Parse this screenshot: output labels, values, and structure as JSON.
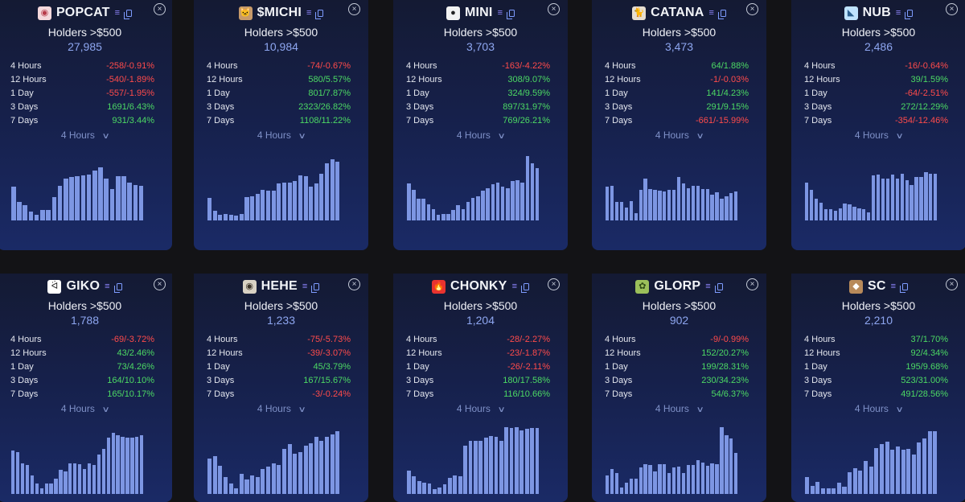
{
  "colors": {
    "up": "#4cd964",
    "down": "#ff4b4b",
    "bar": "#7d96e3",
    "accent": "#8ea6f0"
  },
  "holders_label": "Holders >$500",
  "period_label": "4 Hours",
  "cards": [
    {
      "ticker": "POPCAT",
      "logo": "◉",
      "logo_bg": "#f4d8dc",
      "logo_fg": "#b73b4a",
      "holders": "27,985",
      "stats": [
        {
          "label": "4 Hours",
          "value": "-258/-0.91%",
          "dir": "down"
        },
        {
          "label": "12 Hours",
          "value": "-540/-1.89%",
          "dir": "down"
        },
        {
          "label": "1 Day",
          "value": "-557/-1.95%",
          "dir": "down"
        },
        {
          "label": "3 Days",
          "value": "1691/6.43%",
          "dir": "up"
        },
        {
          "label": "7 Days",
          "value": "931/3.44%",
          "dir": "up"
        }
      ],
      "bars": [
        0.45,
        0.24,
        0.2,
        0.12,
        0.07,
        0.14,
        0.14,
        0.31,
        0.46,
        0.55,
        0.57,
        0.59,
        0.6,
        0.61,
        0.66,
        0.7,
        0.55,
        0.42,
        0.59,
        0.59,
        0.5,
        0.47,
        0.46
      ]
    },
    {
      "ticker": "$MICHI",
      "logo": "🐱",
      "logo_bg": "#c79a6a",
      "logo_fg": "#3a2a1a",
      "holders": "10,984",
      "stats": [
        {
          "label": "4 Hours",
          "value": "-74/-0.67%",
          "dir": "down"
        },
        {
          "label": "12 Hours",
          "value": "580/5.57%",
          "dir": "up"
        },
        {
          "label": "1 Day",
          "value": "801/7.87%",
          "dir": "up"
        },
        {
          "label": "3 Days",
          "value": "2323/26.82%",
          "dir": "up"
        },
        {
          "label": "7 Days",
          "value": "1108/11.22%",
          "dir": "up"
        }
      ],
      "bars": [
        0.3,
        0.13,
        0.07,
        0.09,
        0.08,
        0.06,
        0.09,
        0.31,
        0.32,
        0.35,
        0.4,
        0.39,
        0.39,
        0.49,
        0.5,
        0.5,
        0.52,
        0.6,
        0.59,
        0.45,
        0.49,
        0.62,
        0.76,
        0.81,
        0.78
      ]
    },
    {
      "ticker": "MINI",
      "logo": "●",
      "logo_bg": "#f2f2f2",
      "logo_fg": "#222222",
      "holders": "3,703",
      "stats": [
        {
          "label": "4 Hours",
          "value": "-163/-4.22%",
          "dir": "down"
        },
        {
          "label": "12 Hours",
          "value": "308/9.07%",
          "dir": "up"
        },
        {
          "label": "1 Day",
          "value": "324/9.59%",
          "dir": "up"
        },
        {
          "label": "3 Days",
          "value": "897/31.97%",
          "dir": "up"
        },
        {
          "label": "7 Days",
          "value": "769/26.21%",
          "dir": "up"
        }
      ],
      "bars": [
        0.49,
        0.41,
        0.29,
        0.29,
        0.21,
        0.15,
        0.08,
        0.09,
        0.09,
        0.14,
        0.2,
        0.15,
        0.24,
        0.3,
        0.32,
        0.39,
        0.43,
        0.48,
        0.5,
        0.45,
        0.43,
        0.52,
        0.53,
        0.5,
        0.85,
        0.76,
        0.69
      ]
    },
    {
      "ticker": "CATANA",
      "logo": "🐈",
      "logo_bg": "#e6ddd0",
      "logo_fg": "#4a3b2a",
      "holders": "3,473",
      "stats": [
        {
          "label": "4 Hours",
          "value": "64/1.88%",
          "dir": "up"
        },
        {
          "label": "12 Hours",
          "value": "-1/-0.03%",
          "dir": "down"
        },
        {
          "label": "1 Day",
          "value": "141/4.23%",
          "dir": "up"
        },
        {
          "label": "3 Days",
          "value": "291/9.15%",
          "dir": "up"
        },
        {
          "label": "7 Days",
          "value": "-661/-15.99%",
          "dir": "down"
        }
      ],
      "bars": [
        0.45,
        0.46,
        0.24,
        0.24,
        0.17,
        0.26,
        0.1,
        0.4,
        0.55,
        0.42,
        0.41,
        0.39,
        0.38,
        0.4,
        0.41,
        0.58,
        0.49,
        0.43,
        0.46,
        0.46,
        0.42,
        0.42,
        0.34,
        0.37,
        0.29,
        0.32,
        0.36,
        0.38
      ]
    },
    {
      "ticker": "NUB",
      "logo": "◣",
      "logo_bg": "#bfe3ff",
      "logo_fg": "#2b5f8f",
      "holders": "2,486",
      "stats": [
        {
          "label": "4 Hours",
          "value": "-16/-0.64%",
          "dir": "down"
        },
        {
          "label": "12 Hours",
          "value": "39/1.59%",
          "dir": "up"
        },
        {
          "label": "1 Day",
          "value": "-64/-2.51%",
          "dir": "down"
        },
        {
          "label": "3 Days",
          "value": "272/12.29%",
          "dir": "up"
        },
        {
          "label": "7 Days",
          "value": "-354/-12.46%",
          "dir": "down"
        }
      ],
      "bars": [
        0.5,
        0.4,
        0.29,
        0.23,
        0.15,
        0.15,
        0.13,
        0.16,
        0.22,
        0.21,
        0.18,
        0.16,
        0.15,
        0.11,
        0.6,
        0.61,
        0.55,
        0.55,
        0.61,
        0.55,
        0.62,
        0.53,
        0.47,
        0.58,
        0.58,
        0.64,
        0.62,
        0.62
      ]
    },
    {
      "ticker": "GIKO",
      "logo": "ᐛ",
      "logo_bg": "#ffffff",
      "logo_fg": "#222222",
      "holders": "1,788",
      "stats": [
        {
          "label": "4 Hours",
          "value": "-69/-3.72%",
          "dir": "down"
        },
        {
          "label": "12 Hours",
          "value": "43/2.46%",
          "dir": "up"
        },
        {
          "label": "1 Day",
          "value": "73/4.26%",
          "dir": "up"
        },
        {
          "label": "3 Days",
          "value": "164/10.10%",
          "dir": "up"
        },
        {
          "label": "7 Days",
          "value": "165/10.17%",
          "dir": "up"
        }
      ],
      "bars": [
        0.57,
        0.55,
        0.41,
        0.38,
        0.24,
        0.14,
        0.08,
        0.14,
        0.14,
        0.2,
        0.32,
        0.3,
        0.41,
        0.41,
        0.39,
        0.33,
        0.4,
        0.38,
        0.52,
        0.6,
        0.75,
        0.81,
        0.78,
        0.76,
        0.74,
        0.74,
        0.76,
        0.78
      ]
    },
    {
      "ticker": "HEHE",
      "logo": "◉",
      "logo_bg": "#d9d2c4",
      "logo_fg": "#3b3328",
      "holders": "1,233",
      "stats": [
        {
          "label": "4 Hours",
          "value": "-75/-5.73%",
          "dir": "down"
        },
        {
          "label": "12 Hours",
          "value": "-39/-3.07%",
          "dir": "down"
        },
        {
          "label": "1 Day",
          "value": "45/3.79%",
          "dir": "up"
        },
        {
          "label": "3 Days",
          "value": "167/15.67%",
          "dir": "up"
        },
        {
          "label": "7 Days",
          "value": "-3/-0.24%",
          "dir": "down"
        }
      ],
      "bars": [
        0.47,
        0.5,
        0.37,
        0.22,
        0.14,
        0.08,
        0.27,
        0.19,
        0.25,
        0.22,
        0.33,
        0.36,
        0.41,
        0.38,
        0.6,
        0.66,
        0.53,
        0.55,
        0.64,
        0.67,
        0.76,
        0.7,
        0.76,
        0.79,
        0.83
      ]
    },
    {
      "ticker": "CHONKY",
      "logo": "🔥",
      "logo_bg": "#e9332f",
      "logo_fg": "#ffffff",
      "holders": "1,204",
      "stats": [
        {
          "label": "4 Hours",
          "value": "-28/-2.27%",
          "dir": "down"
        },
        {
          "label": "12 Hours",
          "value": "-23/-1.87%",
          "dir": "down"
        },
        {
          "label": "1 Day",
          "value": "-26/-2.11%",
          "dir": "down"
        },
        {
          "label": "3 Days",
          "value": "180/17.58%",
          "dir": "up"
        },
        {
          "label": "7 Days",
          "value": "116/10.66%",
          "dir": "up"
        }
      ],
      "bars": [
        0.31,
        0.23,
        0.17,
        0.15,
        0.14,
        0.06,
        0.09,
        0.13,
        0.21,
        0.25,
        0.23,
        0.64,
        0.7,
        0.7,
        0.7,
        0.75,
        0.77,
        0.76,
        0.7,
        0.88,
        0.87,
        0.88,
        0.84,
        0.86,
        0.87,
        0.87
      ]
    },
    {
      "ticker": "GLORP",
      "logo": "✿",
      "logo_bg": "#9bbf5a",
      "logo_fg": "#2e4a16",
      "holders": "902",
      "stats": [
        {
          "label": "4 Hours",
          "value": "-9/-0.99%",
          "dir": "down"
        },
        {
          "label": "12 Hours",
          "value": "152/20.27%",
          "dir": "up"
        },
        {
          "label": "1 Day",
          "value": "199/28.31%",
          "dir": "up"
        },
        {
          "label": "3 Days",
          "value": "230/34.23%",
          "dir": "up"
        },
        {
          "label": "7 Days",
          "value": "54/6.37%",
          "dir": "up"
        }
      ],
      "bars": [
        0.25,
        0.33,
        0.28,
        0.09,
        0.15,
        0.2,
        0.2,
        0.35,
        0.39,
        0.38,
        0.3,
        0.39,
        0.39,
        0.28,
        0.35,
        0.36,
        0.28,
        0.38,
        0.38,
        0.45,
        0.42,
        0.37,
        0.41,
        0.39,
        0.88,
        0.78,
        0.73,
        0.54
      ]
    },
    {
      "ticker": "SC",
      "logo": "◆",
      "logo_bg": "#b88a5a",
      "logo_fg": "#ffffff",
      "holders": "2,210",
      "stats": [
        {
          "label": "4 Hours",
          "value": "37/1.70%",
          "dir": "up"
        },
        {
          "label": "12 Hours",
          "value": "92/4.34%",
          "dir": "up"
        },
        {
          "label": "1 Day",
          "value": "195/9.68%",
          "dir": "up"
        },
        {
          "label": "3 Days",
          "value": "523/31.00%",
          "dir": "up"
        },
        {
          "label": "7 Days",
          "value": "491/28.56%",
          "dir": "up"
        }
      ],
      "bars": [
        0.22,
        0.11,
        0.16,
        0.08,
        0.07,
        0.08,
        0.15,
        0.1,
        0.29,
        0.34,
        0.31,
        0.44,
        0.36,
        0.61,
        0.66,
        0.69,
        0.59,
        0.63,
        0.59,
        0.6,
        0.52,
        0.68,
        0.73,
        0.83,
        0.83
      ]
    }
  ]
}
